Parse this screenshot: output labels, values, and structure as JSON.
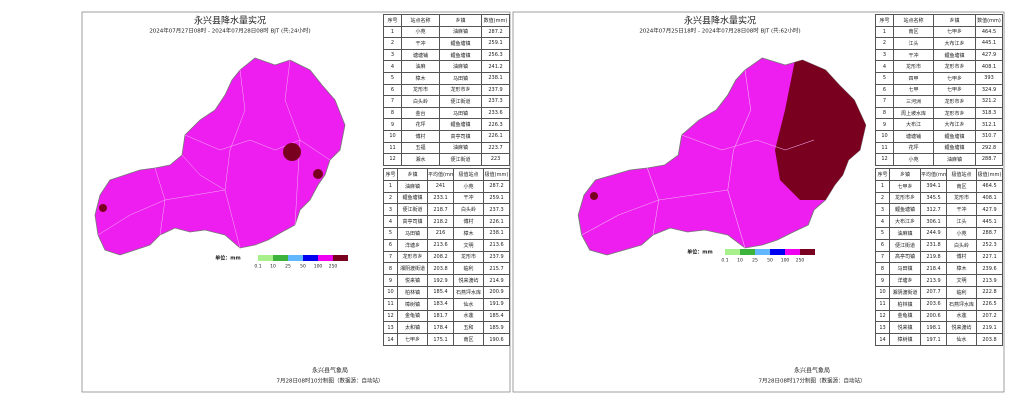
{
  "panels": [
    {
      "title": "永兴县降水量实况",
      "subtitle": "2024年07月27日08时 - 2024年07月28日08时 BJT (共:24小时)",
      "stations_table": {
        "header": [
          "序号",
          "站点名称",
          "乡镇",
          "数值(mm)"
        ],
        "rows": [
          [
            1,
            "小苑",
            "油麻镇",
            287.2
          ],
          [
            2,
            "干冲",
            "鲤鱼塘镇",
            259.1
          ],
          [
            3,
            "塘塘铺",
            "鲤鱼塘镇",
            256.3
          ],
          [
            4,
            "油麻",
            "油麻镇",
            241.2
          ],
          [
            5,
            "樟木",
            "马田镇",
            238.1
          ],
          [
            6,
            "龙形市",
            "龙形市乡",
            237.9
          ],
          [
            7,
            "白头岭",
            "便江街道",
            237.3
          ],
          [
            8,
            "金台",
            "马田镇",
            233.6
          ],
          [
            9,
            "花坪",
            "鲤鱼塘镇",
            226.3
          ],
          [
            10,
            "傅村",
            "高亭司镇",
            226.1
          ],
          [
            11,
            "五福",
            "油麻镇",
            223.7
          ],
          [
            12,
            "湘水",
            "便江街道",
            223
          ]
        ]
      },
      "towns_table": {
        "header": [
          "序号",
          "乡镇",
          "平均值(mm)",
          "极值站点",
          "极值(mm)"
        ],
        "rows": [
          [
            1,
            "油麻镇",
            241,
            "小苑",
            287.2
          ],
          [
            2,
            "鲤鱼塘镇",
            233.1,
            "干冲",
            259.1
          ],
          [
            3,
            "便江街道",
            218.7,
            "白头岭",
            237.3
          ],
          [
            4,
            "高亭司镇",
            218.2,
            "傅村",
            226.1
          ],
          [
            5,
            "马田镇",
            216,
            "樟木",
            238.1
          ],
          [
            6,
            "洋塘乡",
            213.6,
            "文明",
            213.6
          ],
          [
            7,
            "龙形市乡",
            208.2,
            "龙形市",
            237.9
          ],
          [
            8,
            "湘阴渡街道",
            203.8,
            "临利",
            215.7
          ],
          [
            9,
            "悦来镇",
            192.9,
            "悦来渡屿",
            214.9
          ],
          [
            10,
            "柏林镇",
            185.4,
            "石燕坪水库",
            200.9
          ],
          [
            11,
            "樟树镇",
            183.4,
            "仙水",
            191.9
          ],
          [
            12,
            "金龟镇",
            181.7,
            "水莲",
            185.4
          ],
          [
            13,
            "太和镇",
            178.4,
            "五和",
            185.9
          ],
          [
            14,
            "七甲乡",
            175.1,
            "南区",
            190.6
          ]
        ]
      },
      "legend": {
        "unit": "单位：mm",
        "labels": [
          0.1,
          10,
          25,
          50,
          100,
          250
        ],
        "colors": [
          "#a8f08c",
          "#3cb43c",
          "#62b8ff",
          "#0000f0",
          "#f000f0",
          "#7a0020"
        ]
      },
      "footer": {
        "org": "永兴县气象局",
        "note": "7月28日08时10分制图（数据源：自动站）"
      }
    },
    {
      "title": "永兴县降水量实况",
      "subtitle": "2024年07月25日18时 - 2024年07月28日08时 BJT (共:62小时)",
      "stations_table": {
        "header": [
          "序号",
          "站点名称",
          "乡镇",
          "数值(mm)"
        ],
        "rows": [
          [
            1,
            "南区",
            "七甲乡",
            464.5
          ],
          [
            2,
            "江头",
            "大布江乡",
            445.1
          ],
          [
            3,
            "干冲",
            "鲤鱼塘镇",
            427.9
          ],
          [
            4,
            "龙形市",
            "龙形市乡",
            408.1
          ],
          [
            5,
            "四甲",
            "七甲乡",
            393
          ],
          [
            6,
            "七甲",
            "七甲乡",
            324.9
          ],
          [
            7,
            "三河洲",
            "龙形市乡",
            321.2
          ],
          [
            8,
            "周上坡水库",
            "龙形市乡",
            318.3
          ],
          [
            9,
            "大布江",
            "大布江乡",
            312.1
          ],
          [
            10,
            "塘塘铺",
            "鲤鱼塘镇",
            310.7
          ],
          [
            11,
            "花坪",
            "鲤鱼塘镇",
            292.8
          ],
          [
            12,
            "小苑",
            "油麻镇",
            288.7
          ]
        ]
      },
      "towns_table": {
        "header": [
          "序号",
          "乡镇",
          "平均值(mm)",
          "极值站点",
          "极值(mm)"
        ],
        "rows": [
          [
            1,
            "七甲乡",
            394.1,
            "南区",
            464.5
          ],
          [
            2,
            "龙形市乡",
            345.5,
            "龙形市",
            408.1
          ],
          [
            3,
            "鲤鱼塘镇",
            312.7,
            "干冲",
            427.9
          ],
          [
            4,
            "大布江乡",
            306.1,
            "江头",
            445.1
          ],
          [
            5,
            "油麻镇",
            244.9,
            "小苑",
            288.7
          ],
          [
            6,
            "便江街道",
            231.8,
            "白头岭",
            252.3
          ],
          [
            7,
            "高亭司镇",
            219.8,
            "傅村",
            227.1
          ],
          [
            8,
            "马田镇",
            218.4,
            "樟木",
            239.6
          ],
          [
            9,
            "洋塘乡",
            213.9,
            "文明",
            213.9
          ],
          [
            10,
            "湘阴渡街道",
            207.7,
            "临利",
            222.8
          ],
          [
            11,
            "柏林镇",
            203.6,
            "石燕坪水库",
            226.5
          ],
          [
            12,
            "金龟镇",
            200.6,
            "水莲",
            207.2
          ],
          [
            13,
            "悦来镇",
            198.1,
            "悦来渡屿",
            219.1
          ],
          [
            14,
            "樟树镇",
            197.1,
            "仙水",
            203.8
          ]
        ]
      },
      "legend": {
        "unit": "单位：mm",
        "labels": [
          0.1,
          10,
          25,
          50,
          100,
          250
        ],
        "colors": [
          "#a8f08c",
          "#3cb43c",
          "#62b8ff",
          "#0000f0",
          "#f000f0",
          "#7a0020"
        ]
      },
      "footer": {
        "org": "永兴县气象局",
        "note": "7月28日08时17分制图（数据源：自动站）"
      }
    }
  ]
}
